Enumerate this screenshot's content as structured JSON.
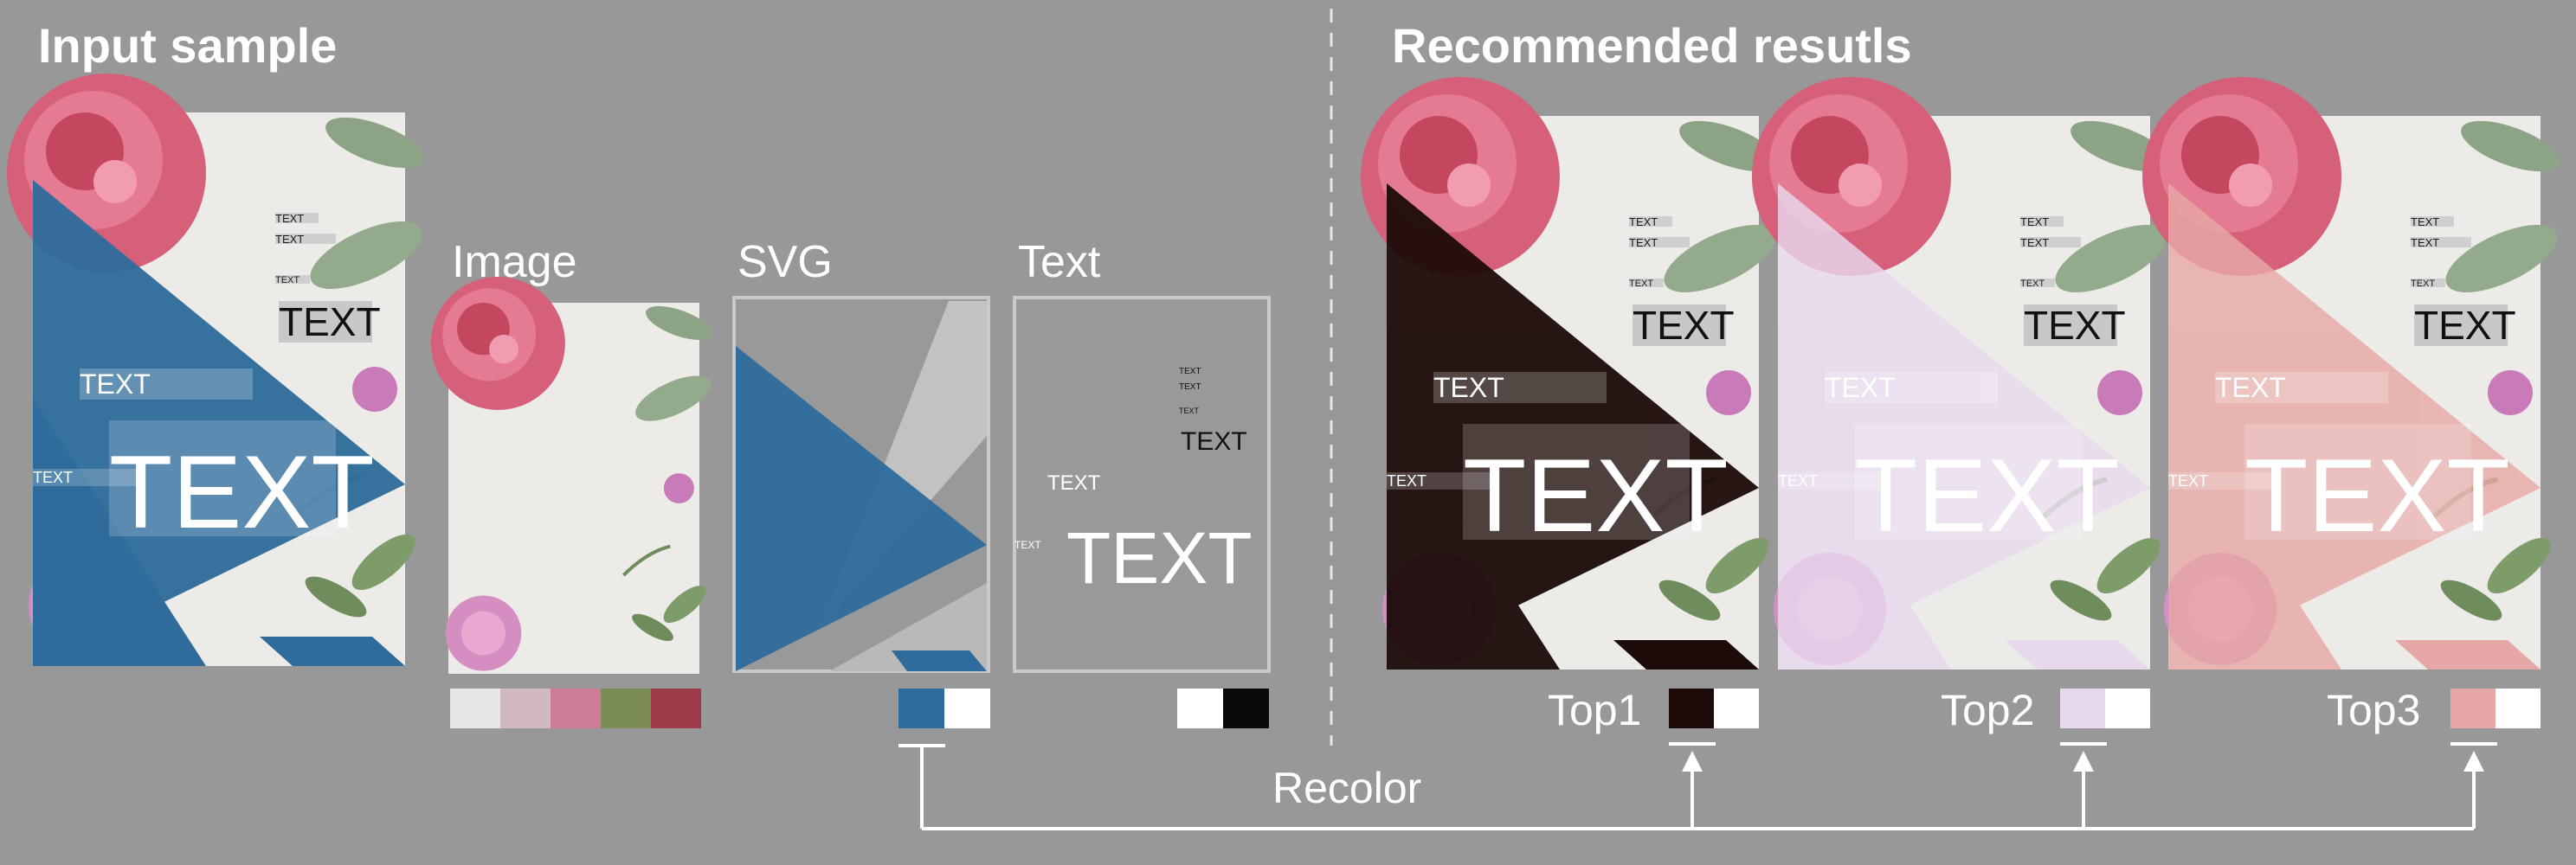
{
  "input_title": "Input sample",
  "results_title": "Recommended resutls",
  "components": {
    "image_label": "Image",
    "svg_label": "SVG",
    "text_label": "Text"
  },
  "poster_text": {
    "small": "TEXT",
    "medium": "TEXT",
    "large": "TEXT"
  },
  "palettes": {
    "image": [
      "#e6e6e6",
      "#d2b9c1",
      "#cc7d95",
      "#7c8c57",
      "#9e3b4b"
    ],
    "svg": [
      "#2f6c9c",
      "#ffffff"
    ],
    "text": [
      "#ffffff",
      "#0a0a0a"
    ]
  },
  "results": [
    {
      "label": "Top1",
      "swatches": [
        "#1c0b08",
        "#ffffff"
      ]
    },
    {
      "label": "Top2",
      "swatches": [
        "#e8d8ee",
        "#ffffff"
      ]
    },
    {
      "label": "Top3",
      "swatches": [
        "#e6a8a6",
        "#ffffff"
      ]
    }
  ],
  "flow_label": "Recolor"
}
